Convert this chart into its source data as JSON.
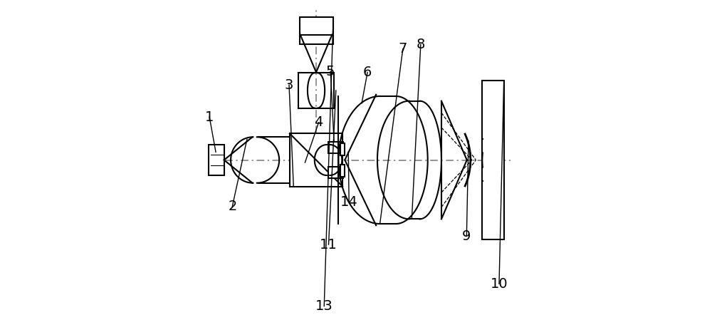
{
  "bg": "#ffffff",
  "lc": "#000000",
  "lw": 1.5,
  "oy": 0.5,
  "figsize": [
    10.0,
    4.49
  ],
  "dpi": 100,
  "label_fontsize": 14
}
